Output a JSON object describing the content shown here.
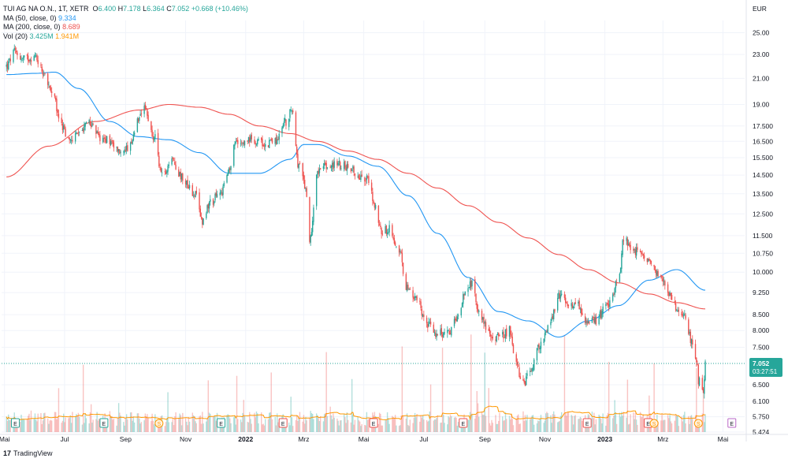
{
  "legend": {
    "title": "TUI AG NA O.N., 1T, XETR",
    "o_label": "O",
    "o": "6.400",
    "h_label": "H",
    "h": "7.178",
    "l_label": "L",
    "l": "6.364",
    "c_label": "C",
    "c": "7.052",
    "change": "+0.668 (+10.46%)",
    "ma50_label": "MA (50, close, 0)",
    "ma50": "9.334",
    "ma200_label": "MA (200, close, 0)",
    "ma200": "8.689",
    "vol_label": "Vol (20)",
    "vol": "3.425M",
    "vol_ma": "1.941M"
  },
  "brand": {
    "name": "TradingView"
  },
  "colors": {
    "up": "#26a69a",
    "down": "#ef5350",
    "ma50": "#2196f3",
    "ma200": "#ef5350",
    "vol_ma": "#ff9800",
    "last": "#26a69a",
    "grid": "#f0f3fa"
  },
  "chart_data": {
    "type": "candlestick",
    "currency_label": "EUR",
    "y_scale": "log",
    "yticks": [
      "25.00",
      "23.00",
      "21.00",
      "19.00",
      "17.500",
      "16.500",
      "15.500",
      "14.500",
      "13.500",
      "12.500",
      "11.500",
      "10.750",
      "10.000",
      "9.250",
      "8.500",
      "8.000",
      "7.500",
      "6.500",
      "6.100",
      "5.750",
      "5.424"
    ],
    "ylim": [
      5.424,
      26.2
    ],
    "x_labels": [
      "Mai",
      "Jul",
      "Sep",
      "Nov",
      "2022",
      "Mrz",
      "Mai",
      "Jul",
      "Sep",
      "Nov",
      "2023",
      "Mrz",
      "Mai"
    ],
    "x_label_dates": [
      "2021-05-01",
      "2021-07-01",
      "2021-09-01",
      "2021-11-01",
      "2022-01-01",
      "2022-03-01",
      "2022-05-01",
      "2022-07-01",
      "2022-09-01",
      "2022-11-01",
      "2023-01-01",
      "2023-03-01",
      "2023-05-01"
    ],
    "x_start": "2021-04-28",
    "x_end": "2023-05-23",
    "price_anchors": [
      [
        "2021-05-03",
        22.0
      ],
      [
        "2021-05-11",
        23.2
      ],
      [
        "2021-05-20",
        22.6
      ],
      [
        "2021-06-01",
        22.8
      ],
      [
        "2021-06-10",
        21.5
      ],
      [
        "2021-06-18",
        19.8
      ],
      [
        "2021-06-28",
        17.5
      ],
      [
        "2021-07-05",
        16.5
      ],
      [
        "2021-07-15",
        17.0
      ],
      [
        "2021-07-26",
        17.8
      ],
      [
        "2021-08-05",
        16.8
      ],
      [
        "2021-08-16",
        16.6
      ],
      [
        "2021-08-27",
        15.8
      ],
      [
        "2021-09-06",
        16.2
      ],
      [
        "2021-09-14",
        17.8
      ],
      [
        "2021-09-20",
        18.6
      ],
      [
        "2021-09-30",
        16.8
      ],
      [
        "2021-10-08",
        14.5
      ],
      [
        "2021-10-18",
        15.4
      ],
      [
        "2021-10-28",
        14.4
      ],
      [
        "2021-11-10",
        13.5
      ],
      [
        "2021-11-18",
        12.2
      ],
      [
        "2021-11-25",
        13.0
      ],
      [
        "2021-12-06",
        13.5
      ],
      [
        "2021-12-15",
        14.7
      ],
      [
        "2021-12-23",
        16.6
      ],
      [
        "2022-01-10",
        16.6
      ],
      [
        "2022-01-20",
        16.3
      ],
      [
        "2022-02-01",
        16.6
      ],
      [
        "2022-02-11",
        17.8
      ],
      [
        "2022-02-17",
        18.6
      ],
      [
        "2022-02-24",
        15.0
      ],
      [
        "2022-03-03",
        13.8
      ],
      [
        "2022-03-07",
        11.2
      ],
      [
        "2022-03-15",
        14.8
      ],
      [
        "2022-03-25",
        15.0
      ],
      [
        "2022-04-04",
        15.1
      ],
      [
        "2022-04-15",
        15.0
      ],
      [
        "2022-04-25",
        14.5
      ],
      [
        "2022-05-05",
        14.3
      ],
      [
        "2022-05-12",
        13.0
      ],
      [
        "2022-05-19",
        11.7
      ],
      [
        "2022-05-27",
        11.8
      ],
      [
        "2022-06-06",
        10.8
      ],
      [
        "2022-06-14",
        9.4
      ],
      [
        "2022-06-24",
        9.0
      ],
      [
        "2022-07-04",
        8.2
      ],
      [
        "2022-07-15",
        7.9
      ],
      [
        "2022-07-27",
        7.9
      ],
      [
        "2022-08-04",
        8.4
      ],
      [
        "2022-08-12",
        9.3
      ],
      [
        "2022-08-19",
        9.6
      ],
      [
        "2022-08-26",
        8.6
      ],
      [
        "2022-09-06",
        7.9
      ],
      [
        "2022-09-16",
        7.8
      ],
      [
        "2022-09-26",
        8.0
      ],
      [
        "2022-10-03",
        7.0
      ],
      [
        "2022-10-10",
        6.5
      ],
      [
        "2022-10-18",
        6.9
      ],
      [
        "2022-10-28",
        7.6
      ],
      [
        "2022-11-08",
        8.4
      ],
      [
        "2022-11-15",
        9.1
      ],
      [
        "2022-11-24",
        8.9
      ],
      [
        "2022-12-05",
        8.8
      ],
      [
        "2022-12-14",
        8.2
      ],
      [
        "2022-12-22",
        8.3
      ],
      [
        "2023-01-05",
        8.9
      ],
      [
        "2023-01-16",
        9.8
      ],
      [
        "2023-01-20",
        11.4
      ],
      [
        "2023-01-27",
        11.0
      ],
      [
        "2023-02-06",
        10.7
      ],
      [
        "2023-02-14",
        10.5
      ],
      [
        "2023-02-24",
        10.0
      ],
      [
        "2023-03-03",
        9.5
      ],
      [
        "2023-03-10",
        9.1
      ],
      [
        "2023-03-16",
        8.6
      ],
      [
        "2023-03-23",
        8.4
      ],
      [
        "2023-03-30",
        7.7
      ],
      [
        "2023-04-04",
        7.2
      ],
      [
        "2023-04-06",
        6.6
      ],
      [
        "2023-04-11",
        6.4
      ],
      [
        "2023-04-13",
        7.05
      ]
    ],
    "ma50_anchors": [
      [
        "2021-05-03",
        21.3
      ],
      [
        "2021-06-01",
        21.4
      ],
      [
        "2021-06-21",
        21.5
      ],
      [
        "2021-07-15",
        20.2
      ],
      [
        "2021-08-16",
        17.8
      ],
      [
        "2021-09-14",
        16.8
      ],
      [
        "2021-10-15",
        16.6
      ],
      [
        "2021-11-15",
        15.8
      ],
      [
        "2021-12-15",
        14.6
      ],
      [
        "2022-01-15",
        14.6
      ],
      [
        "2022-02-15",
        15.4
      ],
      [
        "2022-03-01",
        16.3
      ],
      [
        "2022-03-15",
        16.3
      ],
      [
        "2022-04-15",
        15.6
      ],
      [
        "2022-05-15",
        15.0
      ],
      [
        "2022-06-15",
        13.4
      ],
      [
        "2022-07-15",
        11.6
      ],
      [
        "2022-08-15",
        9.8
      ],
      [
        "2022-09-15",
        8.6
      ],
      [
        "2022-10-15",
        8.3
      ],
      [
        "2022-11-15",
        7.8
      ],
      [
        "2022-12-15",
        8.3
      ],
      [
        "2023-01-15",
        8.8
      ],
      [
        "2023-02-15",
        9.7
      ],
      [
        "2023-03-15",
        10.1
      ],
      [
        "2023-04-13",
        9.334
      ]
    ],
    "ma200_anchors": [
      [
        "2021-05-03",
        14.4
      ],
      [
        "2021-06-15",
        16.2
      ],
      [
        "2021-08-01",
        17.8
      ],
      [
        "2021-09-15",
        18.6
      ],
      [
        "2021-10-15",
        19.0
      ],
      [
        "2021-11-15",
        18.8
      ],
      [
        "2021-12-15",
        18.3
      ],
      [
        "2022-01-15",
        17.5
      ],
      [
        "2022-02-15",
        17.0
      ],
      [
        "2022-03-15",
        16.5
      ],
      [
        "2022-04-15",
        15.9
      ],
      [
        "2022-05-15",
        15.4
      ],
      [
        "2022-06-15",
        14.6
      ],
      [
        "2022-07-15",
        13.8
      ],
      [
        "2022-08-15",
        12.9
      ],
      [
        "2022-09-15",
        12.1
      ],
      [
        "2022-10-15",
        11.4
      ],
      [
        "2022-11-15",
        10.7
      ],
      [
        "2022-12-15",
        10.1
      ],
      [
        "2023-01-15",
        9.6
      ],
      [
        "2023-02-15",
        9.2
      ],
      [
        "2023-03-15",
        8.9
      ],
      [
        "2023-04-13",
        8.689
      ]
    ],
    "last_price": "7.052",
    "countdown": "03:27:51",
    "event_markers": [
      {
        "date": "2021-05-12",
        "label": "E",
        "kind": "earnings"
      },
      {
        "date": "2021-08-10",
        "label": "E",
        "kind": "earnings"
      },
      {
        "date": "2021-10-05",
        "label": "S",
        "kind": "split"
      },
      {
        "date": "2021-12-07",
        "label": "E",
        "kind": "earnings"
      },
      {
        "date": "2022-02-08",
        "label": "E",
        "kind": "earnings"
      },
      {
        "date": "2022-05-11",
        "label": "E",
        "kind": "earnings"
      },
      {
        "date": "2022-08-10",
        "label": "E",
        "kind": "earnings"
      },
      {
        "date": "2022-12-14",
        "label": "E",
        "kind": "earnings"
      },
      {
        "date": "2023-02-14",
        "label": "E",
        "kind": "earnings"
      },
      {
        "date": "2023-02-20",
        "label": "S",
        "kind": "split"
      },
      {
        "date": "2023-04-06",
        "label": "S",
        "kind": "split"
      },
      {
        "date": "2023-05-10",
        "label": "E",
        "kind": "future-earnings"
      }
    ]
  }
}
